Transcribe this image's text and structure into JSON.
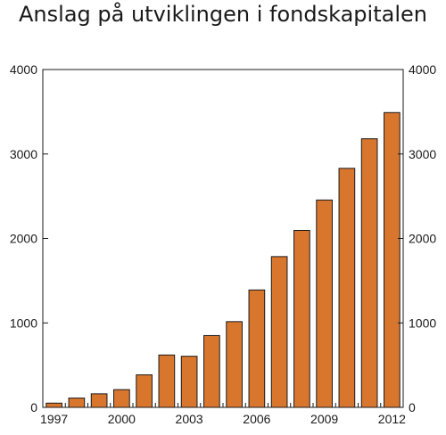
{
  "chart_data": {
    "type": "bar",
    "title": "Anslag på utviklingen i fondskapitalen",
    "xlabel": "",
    "ylabel": "",
    "categories": [
      "1997",
      "1998",
      "1999",
      "2000",
      "2001",
      "2002",
      "2003",
      "2004",
      "2005",
      "2006",
      "2007",
      "2008",
      "2009",
      "2010",
      "2011",
      "2012"
    ],
    "values": [
      50,
      110,
      160,
      210,
      385,
      620,
      605,
      850,
      1015,
      1390,
      1785,
      2095,
      2455,
      2830,
      3180,
      3490
    ],
    "x_tick_labels": [
      "1997",
      "2000",
      "2003",
      "2006",
      "2009",
      "2012"
    ],
    "y_tick_labels": [
      "0",
      "1000",
      "2000",
      "3000",
      "4000"
    ],
    "ylim": [
      0,
      4000
    ],
    "y_ticks": [
      0,
      1000,
      2000,
      3000,
      4000
    ],
    "right_axis_mirrors_left": true,
    "grid": false,
    "bar_color": "#d9762e",
    "bar_outline_color": "#1a1a1a"
  }
}
